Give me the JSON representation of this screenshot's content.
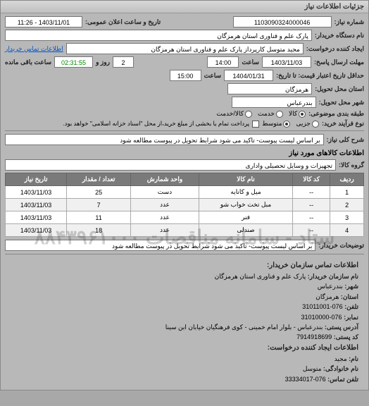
{
  "header": {
    "title": "جزئیات اطلاعات نیاز"
  },
  "fields": {
    "requestNumber_label": "شماره نیاز:",
    "requestNumber": "1103090324000046",
    "announceDate_label": "تاریخ و ساعت اعلان عمومی:",
    "announceDate": "1403/11/01 - 11:26",
    "buyerName_label": "نام دستگاه خریدار:",
    "buyerName": "پارک علم و فناوری استان هرمزگان",
    "creator_label": "ایجاد کننده درخواست:",
    "creator": "مجید متوسل کارپرداز پارک علم و فناوری استان هرمزگان",
    "contactLink": "اطلاعات تماس خریدار",
    "replyDeadline_label": "مهلت ارسال پاسخ:",
    "replyDate": "1403/11/03",
    "timeLabel": "ساعت",
    "replyTime": "14:00",
    "remaining_days": "2",
    "remaining_days_label": "روز و",
    "remaining_time": "02:31:55",
    "remaining_label": "ساعت باقی مانده",
    "validity_label": "حداقل تاریخ اعتبار قیمت:  تا تاریخ:",
    "validityDate": "1404/01/31",
    "validityTime": "15:00",
    "deliveryProvince_label": "استان محل تحویل:",
    "deliveryProvince": "هرمزگان",
    "deliveryCity_label": "شهر محل تحویل:",
    "deliveryCity": "بندرعباس",
    "subjectType_label": "طبقه بندی موضوعی:",
    "radio_goods": "کالا",
    "radio_service": "خدمت",
    "radio_both": "کالا/خدمت",
    "processType_label": "نوع فرآیند خرید:",
    "radio_low": "جزیی",
    "radio_mid": "متوسط",
    "processNote": "پرداخت تمام یا بخشی از مبلغ خرید،از محل \"اسناد خزانه اسلامی\" خواهد بود.",
    "keyDesc_label": "شرح کلی نیاز:",
    "keyDesc": "بر اساس لیست پیوست- تاکید می شود شرایط تحویل در پیوست مطالعه شود",
    "goodsInfo_title": "اطلاعات کالاهای مورد نیاز",
    "goodsGroup_label": "گروه کالا:",
    "goodsGroup": "تجهیزات و وسایل تحصیلی واداری",
    "buyerNotes_label": "توضیحات خریدار:",
    "buyerNotes": "بر اساس لیست پیوست- تاکید می شود شرایط تحویل در پیوست مطالعه شود"
  },
  "table": {
    "headers": [
      "ردیف",
      "کد کالا",
      "نام کالا",
      "واحد شمارش",
      "تعداد / مقدار",
      "تاریخ نیاز"
    ],
    "rows": [
      [
        "1",
        "--",
        "میل و کانایه",
        "دست",
        "25",
        "1403/11/03"
      ],
      [
        "2",
        "--",
        "مبل تخت خواب شو",
        "عدد",
        "7",
        "1403/11/03"
      ],
      [
        "3",
        "--",
        "فنر",
        "عدد",
        "11",
        "1403/11/03"
      ],
      [
        "4",
        "--",
        "صندلی",
        "عدد",
        "18",
        "1403/11/03"
      ]
    ]
  },
  "contact": {
    "title": "اطلاعات تماس سازمان خریدار:",
    "orgName_label": "نام سازمان خریدار:",
    "orgName": "پارک علم و فناوری استان هرمزگان",
    "city_label": "شهر:",
    "city": "بندرعباس",
    "province_label": "استان:",
    "province": "هرمزگان",
    "phone_label": "تلفن:",
    "phone": "076-31011001",
    "fax_label": "نمابر:",
    "fax": "076-31010000",
    "postAddr_label": "آدرس پستی:",
    "postAddr": "بندرعباس - بلوار امام خمینی - کوی فرهنگیان خیابان ابن سینا",
    "postCode_label": "کد پستی:",
    "postCode": "7914918699",
    "creatorInfo_title": "اطلاعات ایجاد کننده درخواست:",
    "firstName_label": "نام:",
    "firstName": "مجید",
    "lastName_label": "نام خانوادگی:",
    "lastName": "متوسل",
    "contactPhone_label": "تلفن تماس:",
    "contactPhone": "076-33334017"
  },
  "watermark": "ستاد - سامانه مناقصات ۸۸۴۳۹۶۱۰۰۰",
  "colors": {
    "bg": "#a8a8a8",
    "panel": "#b8b8b8",
    "headerGrad1": "#d8d8d8",
    "headerGrad2": "#c0c0c0",
    "tableHeader": "#7a7a7a",
    "link": "#0055cc"
  }
}
